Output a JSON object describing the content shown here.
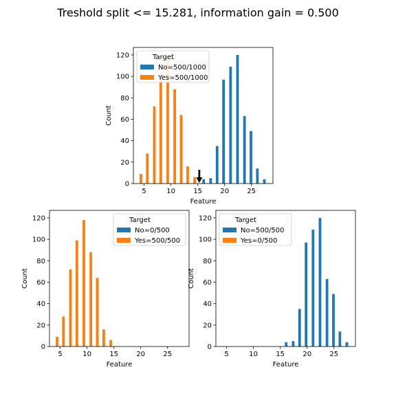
{
  "figure": {
    "title": "Treshold split <= 15.281,  information gain = 0.500",
    "colors": {
      "no": "#1f77b4",
      "yes": "#ff7f0e",
      "arrow": "#000000"
    }
  },
  "chart_data": [
    {
      "type": "bar",
      "panel": "top",
      "title": "",
      "xlabel": "Feature",
      "ylabel": "Count",
      "xlim": [
        3,
        29
      ],
      "ylim": [
        0,
        127
      ],
      "xticks": [
        5,
        10,
        15,
        20,
        25
      ],
      "yticks": [
        0,
        20,
        40,
        60,
        80,
        100,
        120
      ],
      "legend": {
        "title": "Target",
        "placement": "top-left",
        "entries": [
          "No=500/1000",
          "Yes=500/1000"
        ]
      },
      "threshold_marker": {
        "x": 15.281,
        "shape": "down-arrow"
      },
      "series": [
        {
          "name": "No",
          "color_key": "no",
          "x": [
            16.1,
            17.4,
            18.6,
            19.8,
            21.1,
            22.4,
            23.7,
            24.9,
            26.1,
            27.4
          ],
          "values": [
            4,
            5,
            35,
            97,
            109,
            120,
            63,
            49,
            14,
            4
          ]
        },
        {
          "name": "Yes",
          "color_key": "yes",
          "x": [
            4.4,
            5.6,
            6.9,
            8.1,
            9.4,
            10.7,
            11.9,
            13.1,
            14.4
          ],
          "values": [
            9,
            28,
            72,
            99,
            118,
            88,
            64,
            16,
            6
          ]
        }
      ]
    },
    {
      "type": "bar",
      "panel": "bottom-left",
      "title": "",
      "xlabel": "Feature",
      "ylabel": "Count",
      "xlim": [
        3,
        29
      ],
      "ylim": [
        0,
        127
      ],
      "xticks": [
        5,
        10,
        15,
        20,
        25
      ],
      "yticks": [
        0,
        20,
        40,
        60,
        80,
        100,
        120
      ],
      "legend": {
        "title": "Target",
        "placement": "top-right",
        "entries": [
          "No=0/500",
          "Yes=500/500"
        ]
      },
      "series": [
        {
          "name": "No",
          "color_key": "no",
          "x": [],
          "values": []
        },
        {
          "name": "Yes",
          "color_key": "yes",
          "x": [
            4.4,
            5.6,
            6.9,
            8.1,
            9.4,
            10.7,
            11.9,
            13.1,
            14.4
          ],
          "values": [
            9,
            28,
            72,
            99,
            118,
            88,
            64,
            16,
            6
          ]
        }
      ]
    },
    {
      "type": "bar",
      "panel": "bottom-right",
      "title": "",
      "xlabel": "Feature",
      "ylabel": "Count",
      "xlim": [
        3,
        29
      ],
      "ylim": [
        0,
        127
      ],
      "xticks": [
        5,
        10,
        15,
        20,
        25
      ],
      "yticks": [
        0,
        20,
        40,
        60,
        80,
        100,
        120
      ],
      "legend": {
        "title": "Target",
        "placement": "top-left",
        "entries": [
          "No=500/500",
          "Yes=0/500"
        ]
      },
      "series": [
        {
          "name": "No",
          "color_key": "no",
          "x": [
            16.1,
            17.4,
            18.6,
            19.8,
            21.1,
            22.4,
            23.7,
            24.9,
            26.1,
            27.4
          ],
          "values": [
            4,
            5,
            35,
            97,
            109,
            120,
            63,
            49,
            14,
            4
          ]
        },
        {
          "name": "Yes",
          "color_key": "yes",
          "x": [],
          "values": []
        }
      ]
    }
  ]
}
